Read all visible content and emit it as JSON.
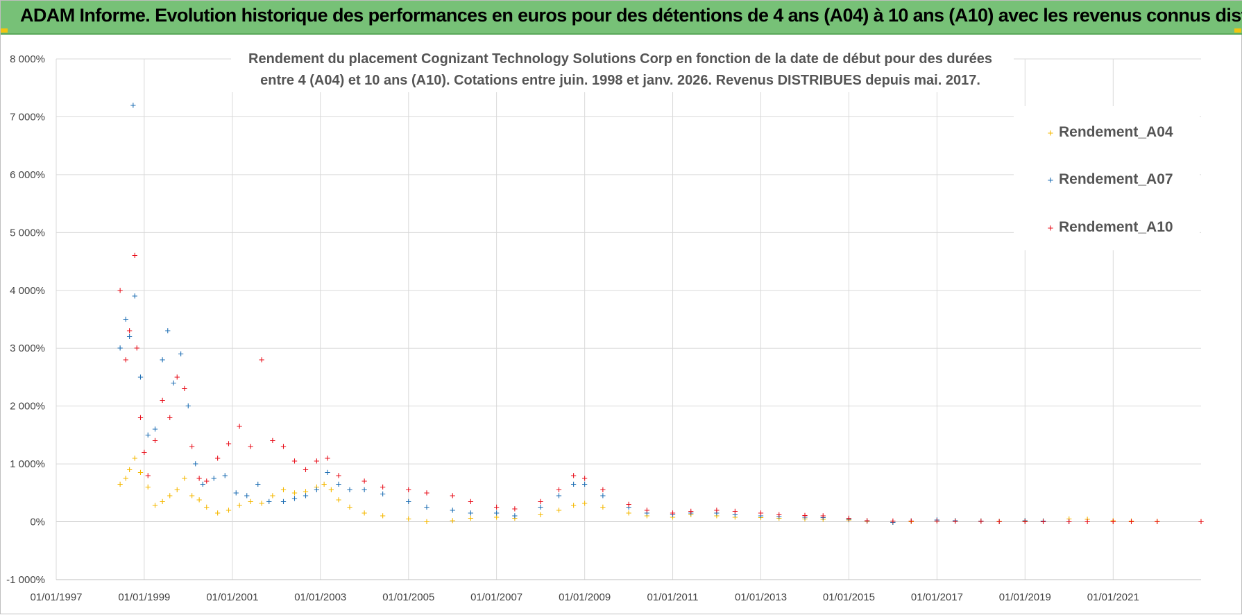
{
  "header": {
    "title": "ADAM Informe. Evolution historique des performances en euros pour des détentions de 4 ans (A04) à 10 ans (A10) avec les revenus connus distribués"
  },
  "colors": {
    "banner": "#77c177",
    "A04": "#f5b800",
    "A07": "#1f6fb4",
    "A10": "#e8101c",
    "grid": "#d9d9d9"
  },
  "chart_data": {
    "type": "scatter",
    "title_lines": [
      "Rendement du placement Cognizant Technology Solutions Corp en fonction de la date de début pour des durées",
      "entre 4 (A04) et 10 ans (A10). Cotations entre juin. 1998 et janv. 2026. Revenus DISTRIBUES depuis mai. 2017."
    ],
    "xlabel": "",
    "ylabel": "",
    "x_range": [
      "01/01/1997",
      "31/12/2022"
    ],
    "ylim": [
      -1000,
      8000
    ],
    "grid": true,
    "legend_position": "top-right",
    "y_ticks": [
      {
        "value": 8000,
        "label": "8 000%"
      },
      {
        "value": 7000,
        "label": "7 000%"
      },
      {
        "value": 6000,
        "label": "6 000%"
      },
      {
        "value": 5000,
        "label": "5 000%"
      },
      {
        "value": 4000,
        "label": "4 000%"
      },
      {
        "value": 3000,
        "label": "3 000%"
      },
      {
        "value": 2000,
        "label": "2 000%"
      },
      {
        "value": 1000,
        "label": "1 000%"
      },
      {
        "value": 0,
        "label": "0%"
      },
      {
        "value": -1000,
        "label": "-1 000%"
      }
    ],
    "x_ticks": [
      "01/01/1997",
      "01/01/1999",
      "01/01/2001",
      "01/01/2003",
      "01/01/2005",
      "01/01/2007",
      "01/01/2009",
      "01/01/2011",
      "01/01/2013",
      "01/01/2015",
      "01/01/2017",
      "01/01/2019",
      "01/01/2021"
    ],
    "series": [
      {
        "name": "Rendement_A04",
        "color": "#f5b800",
        "points": [
          [
            "15/06/1998",
            650
          ],
          [
            "01/08/1998",
            750
          ],
          [
            "01/09/1998",
            900
          ],
          [
            "15/10/1998",
            1100
          ],
          [
            "01/12/1998",
            850
          ],
          [
            "01/02/1999",
            600
          ],
          [
            "01/04/1999",
            280
          ],
          [
            "01/06/1999",
            350
          ],
          [
            "01/08/1999",
            450
          ],
          [
            "01/10/1999",
            550
          ],
          [
            "01/12/1999",
            750
          ],
          [
            "01/02/2000",
            450
          ],
          [
            "01/04/2000",
            380
          ],
          [
            "01/06/2000",
            250
          ],
          [
            "01/09/2000",
            150
          ],
          [
            "01/12/2000",
            200
          ],
          [
            "01/03/2001",
            280
          ],
          [
            "01/06/2001",
            350
          ],
          [
            "01/09/2001",
            320
          ],
          [
            "01/12/2001",
            450
          ],
          [
            "01/03/2002",
            550
          ],
          [
            "01/06/2002",
            500
          ],
          [
            "01/09/2002",
            520
          ],
          [
            "01/12/2002",
            600
          ],
          [
            "01/02/2003",
            650
          ],
          [
            "01/04/2003",
            550
          ],
          [
            "01/06/2003",
            380
          ],
          [
            "01/09/2003",
            250
          ],
          [
            "01/01/2004",
            150
          ],
          [
            "01/06/2004",
            100
          ],
          [
            "01/01/2005",
            50
          ],
          [
            "01/06/2005",
            0
          ],
          [
            "01/01/2006",
            20
          ],
          [
            "01/06/2006",
            60
          ],
          [
            "01/01/2007",
            80
          ],
          [
            "01/06/2007",
            60
          ],
          [
            "01/01/2008",
            120
          ],
          [
            "01/06/2008",
            200
          ],
          [
            "01/10/2008",
            280
          ],
          [
            "01/01/2009",
            320
          ],
          [
            "01/06/2009",
            250
          ],
          [
            "01/01/2010",
            150
          ],
          [
            "01/06/2010",
            100
          ],
          [
            "01/01/2011",
            80
          ],
          [
            "01/06/2011",
            120
          ],
          [
            "01/01/2012",
            100
          ],
          [
            "01/06/2012",
            80
          ],
          [
            "01/01/2013",
            70
          ],
          [
            "01/06/2013",
            60
          ],
          [
            "01/01/2014",
            50
          ],
          [
            "01/06/2014",
            40
          ],
          [
            "01/01/2015",
            30
          ],
          [
            "01/06/2015",
            5
          ],
          [
            "01/01/2016",
            -10
          ],
          [
            "01/06/2016",
            0
          ],
          [
            "01/01/2017",
            10
          ],
          [
            "01/06/2017",
            15
          ],
          [
            "01/01/2018",
            10
          ],
          [
            "01/06/2018",
            5
          ],
          [
            "01/01/2019",
            10
          ],
          [
            "01/06/2019",
            15
          ],
          [
            "01/01/2020",
            50
          ],
          [
            "01/06/2020",
            40
          ],
          [
            "01/01/2021",
            20
          ],
          [
            "01/06/2021",
            10
          ],
          [
            "01/01/2022",
            5
          ],
          [
            "31/12/2022",
            0
          ]
        ]
      },
      {
        "name": "Rendement_A07",
        "color": "#1f6fb4",
        "points": [
          [
            "15/06/1998",
            3000
          ],
          [
            "01/08/1998",
            3500
          ],
          [
            "01/09/1998",
            3200
          ],
          [
            "01/10/1998",
            7200
          ],
          [
            "15/10/1998",
            3900
          ],
          [
            "01/12/1998",
            2500
          ],
          [
            "01/02/1999",
            1500
          ],
          [
            "01/04/1999",
            1600
          ],
          [
            "01/06/1999",
            2800
          ],
          [
            "15/07/1999",
            3300
          ],
          [
            "01/09/1999",
            2400
          ],
          [
            "01/11/1999",
            2900
          ],
          [
            "01/01/2000",
            2000
          ],
          [
            "01/03/2000",
            1000
          ],
          [
            "01/05/2000",
            650
          ],
          [
            "01/08/2000",
            750
          ],
          [
            "01/11/2000",
            800
          ],
          [
            "01/02/2001",
            500
          ],
          [
            "01/05/2001",
            450
          ],
          [
            "01/08/2001",
            650
          ],
          [
            "01/11/2001",
            350
          ],
          [
            "01/03/2002",
            350
          ],
          [
            "01/06/2002",
            400
          ],
          [
            "01/09/2002",
            450
          ],
          [
            "01/12/2002",
            550
          ],
          [
            "01/03/2003",
            850
          ],
          [
            "01/06/2003",
            650
          ],
          [
            "01/09/2003",
            550
          ],
          [
            "01/01/2004",
            550
          ],
          [
            "01/06/2004",
            480
          ],
          [
            "01/01/2005",
            350
          ],
          [
            "01/06/2005",
            250
          ],
          [
            "01/01/2006",
            200
          ],
          [
            "01/06/2006",
            150
          ],
          [
            "01/01/2007",
            150
          ],
          [
            "01/06/2007",
            100
          ],
          [
            "01/01/2008",
            250
          ],
          [
            "01/06/2008",
            450
          ],
          [
            "01/10/2008",
            650
          ],
          [
            "01/01/2009",
            650
          ],
          [
            "01/06/2009",
            450
          ],
          [
            "01/01/2010",
            250
          ],
          [
            "01/06/2010",
            150
          ],
          [
            "01/01/2011",
            120
          ],
          [
            "01/06/2011",
            150
          ],
          [
            "01/01/2012",
            150
          ],
          [
            "01/06/2012",
            120
          ],
          [
            "01/01/2013",
            100
          ],
          [
            "01/06/2013",
            90
          ],
          [
            "01/01/2014",
            80
          ],
          [
            "01/06/2014",
            70
          ],
          [
            "01/01/2015",
            40
          ],
          [
            "01/06/2015",
            10
          ],
          [
            "01/01/2016",
            -10
          ],
          [
            "01/06/2016",
            10
          ],
          [
            "01/01/2017",
            30
          ],
          [
            "01/06/2017",
            20
          ],
          [
            "01/01/2018",
            10
          ],
          [
            "01/06/2018",
            0
          ],
          [
            "01/01/2019",
            20
          ],
          [
            "01/06/2019",
            10
          ],
          [
            "31/12/2019",
            0
          ]
        ]
      },
      {
        "name": "Rendement_A10",
        "color": "#e8101c",
        "points": [
          [
            "15/06/1998",
            4000
          ],
          [
            "01/08/1998",
            2800
          ],
          [
            "01/09/1998",
            3300
          ],
          [
            "15/10/1998",
            4600
          ],
          [
            "01/11/1998",
            3000
          ],
          [
            "01/12/1998",
            1800
          ],
          [
            "01/01/1999",
            1200
          ],
          [
            "01/02/1999",
            800
          ],
          [
            "01/04/1999",
            1400
          ],
          [
            "01/06/1999",
            2100
          ],
          [
            "01/08/1999",
            1800
          ],
          [
            "01/10/1999",
            2500
          ],
          [
            "01/12/1999",
            2300
          ],
          [
            "01/02/2000",
            1300
          ],
          [
            "01/04/2000",
            750
          ],
          [
            "01/06/2000",
            700
          ],
          [
            "01/09/2000",
            1100
          ],
          [
            "01/12/2000",
            1350
          ],
          [
            "01/03/2001",
            1650
          ],
          [
            "01/06/2001",
            1300
          ],
          [
            "01/09/2001",
            2800
          ],
          [
            "01/12/2001",
            1400
          ],
          [
            "01/03/2002",
            1300
          ],
          [
            "01/06/2002",
            1050
          ],
          [
            "01/09/2002",
            900
          ],
          [
            "01/12/2002",
            1050
          ],
          [
            "01/03/2003",
            1100
          ],
          [
            "01/06/2003",
            800
          ],
          [
            "01/01/2004",
            700
          ],
          [
            "01/06/2004",
            600
          ],
          [
            "01/01/2005",
            550
          ],
          [
            "01/06/2005",
            500
          ],
          [
            "01/01/2006",
            450
          ],
          [
            "01/06/2006",
            350
          ],
          [
            "01/01/2007",
            250
          ],
          [
            "01/06/2007",
            220
          ],
          [
            "01/01/2008",
            350
          ],
          [
            "01/06/2008",
            550
          ],
          [
            "01/10/2008",
            800
          ],
          [
            "01/01/2009",
            750
          ],
          [
            "01/06/2009",
            550
          ],
          [
            "01/01/2010",
            300
          ],
          [
            "01/06/2010",
            200
          ],
          [
            "01/01/2011",
            150
          ],
          [
            "01/06/2011",
            180
          ],
          [
            "01/01/2012",
            200
          ],
          [
            "01/06/2012",
            180
          ],
          [
            "01/01/2013",
            150
          ],
          [
            "01/06/2013",
            120
          ],
          [
            "01/01/2014",
            110
          ],
          [
            "01/06/2014",
            100
          ],
          [
            "01/01/2015",
            60
          ],
          [
            "01/06/2015",
            20
          ],
          [
            "01/01/2016",
            10
          ],
          [
            "01/06/2016",
            15
          ],
          [
            "01/01/2017",
            10
          ],
          [
            "01/06/2017",
            5
          ],
          [
            "01/01/2018",
            5
          ],
          [
            "01/06/2018",
            0
          ],
          [
            "01/01/2019",
            0
          ],
          [
            "01/06/2019",
            0
          ],
          [
            "01/01/2020",
            0
          ],
          [
            "01/06/2020",
            0
          ],
          [
            "01/01/2021",
            0
          ],
          [
            "01/06/2021",
            0
          ],
          [
            "01/01/2022",
            0
          ],
          [
            "31/12/2022",
            0
          ]
        ]
      }
    ]
  },
  "legend": {
    "items": [
      "Rendement_A04",
      "Rendement_A07",
      "Rendement_A10"
    ]
  }
}
